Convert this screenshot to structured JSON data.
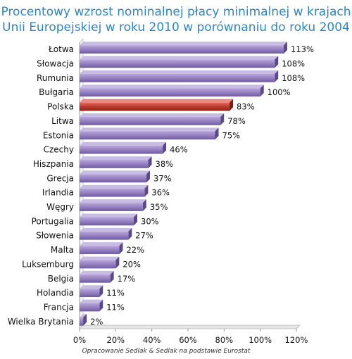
{
  "chart_data": {
    "type": "bar",
    "orientation": "horizontal",
    "title_lines": [
      "Procentowy wzrost nominalnej płacy minimalnej w krajach",
      "Unii Europejskiej w roku 2010 w porównaniu do roku 2004"
    ],
    "categories": [
      "Łotwa",
      "Słowacja",
      "Rumunia",
      "Bułgaria",
      "Polska",
      "Litwa",
      "Estonia",
      "Czechy",
      "Hiszpania",
      "Grecja",
      "Irlandia",
      "Węgry",
      "Portugalia",
      "Słowenia",
      "Malta",
      "Luksemburg",
      "Belgia",
      "Holandia",
      "Francja",
      "Wielka Brytania"
    ],
    "values": [
      113,
      108,
      108,
      100,
      83,
      78,
      75,
      46,
      38,
      37,
      36,
      35,
      30,
      27,
      22,
      20,
      17,
      11,
      11,
      2
    ],
    "value_labels": [
      "113%",
      "108%",
      "108%",
      "100%",
      "83%",
      "78%",
      "75%",
      "46%",
      "38%",
      "37%",
      "36%",
      "35%",
      "30%",
      "27%",
      "22%",
      "20%",
      "17%",
      "11%",
      "11%",
      "2%"
    ],
    "highlight_category": "Polska",
    "colors": {
      "bar": "#8b74b8",
      "highlight": "#c0392b",
      "title": "#2e86c1",
      "grid": "#b0b0b0"
    },
    "xlim": [
      0,
      120
    ],
    "x_ticks": [
      0,
      20,
      40,
      60,
      80,
      100,
      120
    ],
    "x_tick_labels": [
      "0%",
      "20%",
      "40%",
      "60%",
      "80%",
      "100%",
      "120%"
    ],
    "grid": false,
    "legend": "none"
  },
  "source_note": "Opracowanie Sedlak & Sedlak na podstawie Eurostat"
}
